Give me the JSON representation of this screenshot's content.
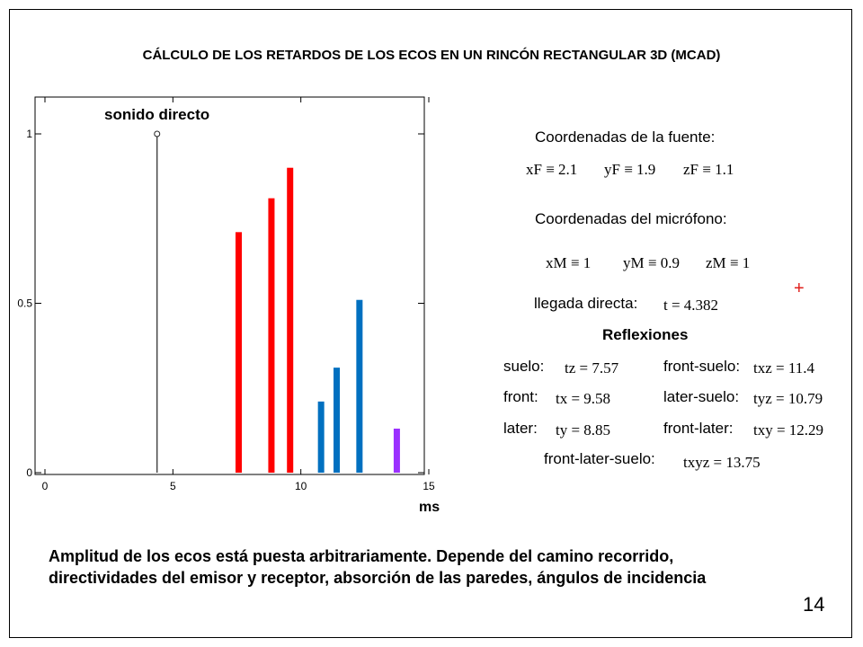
{
  "slide": {
    "title": "CÁLCULO DE LOS RETARDOS DE LOS ECOS EN UN RINCÓN RECTANGULAR 3D   (MCAD)",
    "page_number": "14",
    "note_line1": "Amplitud de los ecos está puesta arbitrariamente. Depende del camino recorrido,",
    "note_line2": "directividades del emisor y receptor, absorción de las paredes, ángulos de incidencia"
  },
  "chart_data": {
    "type": "bar",
    "title": "",
    "xlabel": "ms",
    "ylabel": "",
    "xlim": [
      0,
      15
    ],
    "ylim": [
      0,
      1.05
    ],
    "xticks": [
      "0",
      "5",
      "10",
      "15"
    ],
    "yticks": [
      "0",
      "0.5",
      "1"
    ],
    "annotation": "sonido directo",
    "series": [
      {
        "color": "#222222",
        "x": [
          4.382
        ],
        "values": [
          1.0
        ]
      },
      {
        "color": "#ff0000",
        "x": [
          7.57,
          8.85,
          9.58
        ],
        "values": [
          0.71,
          0.81,
          0.9
        ]
      },
      {
        "color": "#0070c0",
        "x": [
          10.79,
          11.4,
          12.29
        ],
        "values": [
          0.21,
          0.31,
          0.51
        ]
      },
      {
        "color": "#9b30ff",
        "x": [
          13.75
        ],
        "values": [
          0.13
        ]
      }
    ]
  },
  "params": {
    "source_heading": "Coordenadas de la fuente:",
    "xF": "xF ≡ 2.1",
    "yF": "yF ≡ 1.9",
    "zF": "zF ≡ 1.1",
    "mic_heading": "Coordenadas del micrófono:",
    "xM": "xM ≡ 1",
    "yM": "yM ≡ 0.9",
    "zM": "zM ≡ 1",
    "direct_label": "llegada directa:",
    "direct_value": "t = 4.382",
    "plus_mark": "+",
    "reflections_heading": "Reflexiones",
    "suelo_label": "suelo:",
    "tz": "tz = 7.57",
    "front_suelo_label": "front-suelo:",
    "txz": "txz = 11.4",
    "front_label": "front:",
    "tx": "tx = 9.58",
    "later_suelo_label": "later-suelo:",
    "tyz": "tyz = 10.79",
    "later_label": "later:",
    "ty": "ty = 8.85",
    "front_later_label": "front-later:",
    "txy": "txy = 12.29",
    "fls_label": "front-later-suelo:",
    "txyz": "txyz = 13.75"
  }
}
